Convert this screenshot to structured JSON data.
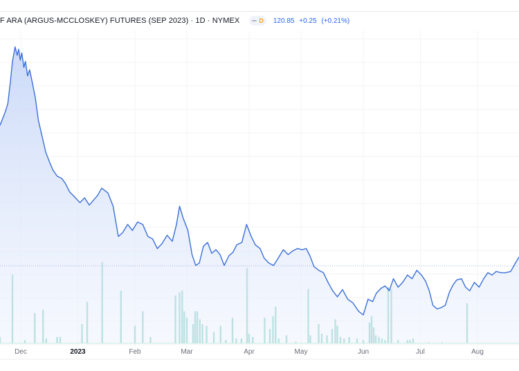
{
  "header": {
    "title": "F ARA (ARGUS-MCCLOSKEY) FUTURES (SEP 2023) · 1D · NYMEX",
    "interval_badge": "D",
    "last_price": "120.85",
    "change": "+0.25",
    "change_pct": "(+0.21%)"
  },
  "colors": {
    "line": "#3a6fd6",
    "area_top": "#c9d8f8",
    "volume": "#7ecbbd",
    "last_price_line": "#9db4ee"
  },
  "chart_data": {
    "type": "area",
    "title": "F ARA (ARGUS-MCCLOSKEY) FUTURES (SEP 2023) · 1D · NYMEX",
    "x_range": [
      0,
      100
    ],
    "ylim": [
      60,
      360
    ],
    "last_price": 120.85,
    "x_tick_labels": [
      {
        "x": 4,
        "label": "Dec"
      },
      {
        "x": 15,
        "label": "2023",
        "bold": true
      },
      {
        "x": 26,
        "label": "Feb"
      },
      {
        "x": 36,
        "label": "Mar"
      },
      {
        "x": 48,
        "label": "Apr"
      },
      {
        "x": 58,
        "label": "May"
      },
      {
        "x": 70,
        "label": "Jun"
      },
      {
        "x": 81,
        "label": "Jul"
      },
      {
        "x": 92,
        "label": "Aug"
      }
    ],
    "price": [
      [
        0,
        292
      ],
      [
        1,
        303
      ],
      [
        1.5,
        310
      ],
      [
        2,
        328
      ],
      [
        2.4,
        345
      ],
      [
        2.9,
        357
      ],
      [
        3.3,
        350
      ],
      [
        3.6,
        355
      ],
      [
        3.9,
        346
      ],
      [
        4.2,
        352
      ],
      [
        4.6,
        340
      ],
      [
        4.9,
        345
      ],
      [
        5.3,
        333
      ],
      [
        5.7,
        338
      ],
      [
        6.2,
        328
      ],
      [
        6.8,
        315
      ],
      [
        7.4,
        296
      ],
      [
        8.1,
        283
      ],
      [
        8.8,
        270
      ],
      [
        9.5,
        262
      ],
      [
        10.2,
        255
      ],
      [
        11,
        250
      ],
      [
        11.9,
        248
      ],
      [
        12.6,
        244
      ],
      [
        13.4,
        237
      ],
      [
        14.3,
        233
      ],
      [
        15.4,
        228
      ],
      [
        16.3,
        232
      ],
      [
        17.2,
        226
      ],
      [
        18,
        230
      ],
      [
        18.8,
        234
      ],
      [
        19.6,
        240
      ],
      [
        20.8,
        236
      ],
      [
        21.8,
        225
      ],
      [
        22.8,
        200
      ],
      [
        23.6,
        203
      ],
      [
        24.6,
        210
      ],
      [
        25.5,
        205
      ],
      [
        26.5,
        212
      ],
      [
        27.5,
        210
      ],
      [
        28.5,
        200
      ],
      [
        29.4,
        198
      ],
      [
        30.3,
        190
      ],
      [
        31.2,
        194
      ],
      [
        32.2,
        201
      ],
      [
        33.2,
        196
      ],
      [
        34,
        210
      ],
      [
        34.6,
        225
      ],
      [
        35.3,
        215
      ],
      [
        36.2,
        205
      ],
      [
        37,
        185
      ],
      [
        37.7,
        176
      ],
      [
        38.4,
        178
      ],
      [
        39.2,
        192
      ],
      [
        40,
        195
      ],
      [
        40.8,
        186
      ],
      [
        41.6,
        189
      ],
      [
        42.4,
        185
      ],
      [
        43.2,
        176
      ],
      [
        44.1,
        184
      ],
      [
        44.9,
        187
      ],
      [
        45.6,
        193
      ],
      [
        46.6,
        195
      ],
      [
        47.5,
        210
      ],
      [
        48.4,
        200
      ],
      [
        49.2,
        193
      ],
      [
        50.1,
        190
      ],
      [
        50.9,
        182
      ],
      [
        51.8,
        178
      ],
      [
        52.7,
        176
      ],
      [
        53.6,
        182
      ],
      [
        54.6,
        189
      ],
      [
        55.5,
        185
      ],
      [
        56.4,
        188
      ],
      [
        57.3,
        190
      ],
      [
        58.2,
        189
      ],
      [
        59,
        190
      ],
      [
        59.7,
        184
      ],
      [
        60.5,
        175
      ],
      [
        61.4,
        172
      ],
      [
        62.3,
        170
      ],
      [
        63.2,
        162
      ],
      [
        64.1,
        155
      ],
      [
        65,
        150
      ],
      [
        66,
        156
      ],
      [
        67,
        148
      ],
      [
        68,
        145
      ],
      [
        69.1,
        138
      ],
      [
        70,
        135
      ],
      [
        70.9,
        148
      ],
      [
        71.8,
        146
      ],
      [
        72.5,
        153
      ],
      [
        73.4,
        157
      ],
      [
        74.2,
        159
      ],
      [
        75,
        155
      ],
      [
        75.8,
        165
      ],
      [
        76.7,
        158
      ],
      [
        77.6,
        162
      ],
      [
        78.5,
        168
      ],
      [
        79.4,
        165
      ],
      [
        80.3,
        172
      ],
      [
        81.2,
        168
      ],
      [
        82,
        163
      ],
      [
        82.7,
        155
      ],
      [
        83.4,
        143
      ],
      [
        84.2,
        140
      ],
      [
        85,
        141
      ],
      [
        85.8,
        143
      ],
      [
        86.6,
        154
      ],
      [
        87.3,
        160
      ],
      [
        88,
        164
      ],
      [
        88.9,
        165
      ],
      [
        89.7,
        158
      ],
      [
        90.5,
        155
      ],
      [
        91.4,
        162
      ],
      [
        92.3,
        158
      ],
      [
        93.2,
        165
      ],
      [
        94,
        170
      ],
      [
        94.8,
        168
      ],
      [
        95.6,
        171
      ],
      [
        96.5,
        170
      ],
      [
        97.4,
        170
      ],
      [
        98.4,
        171
      ],
      [
        99.3,
        178
      ],
      [
        100,
        183
      ]
    ],
    "volume": [
      [
        0,
        4
      ],
      [
        2.4,
        43
      ],
      [
        4.8,
        2
      ],
      [
        6.7,
        19
      ],
      [
        8.3,
        21
      ],
      [
        8.9,
        3
      ],
      [
        11,
        4
      ],
      [
        11.6,
        4
      ],
      [
        15.8,
        12
      ],
      [
        16.8,
        26
      ],
      [
        19.7,
        51
      ],
      [
        23.3,
        33
      ],
      [
        26,
        11
      ],
      [
        27.5,
        20
      ],
      [
        29,
        4
      ],
      [
        33.8,
        30
      ],
      [
        34.6,
        32
      ],
      [
        35.1,
        33
      ],
      [
        35.5,
        20
      ],
      [
        36,
        16
      ],
      [
        37.2,
        12
      ],
      [
        37.6,
        20
      ],
      [
        38,
        20
      ],
      [
        38.5,
        15
      ],
      [
        39,
        12
      ],
      [
        39.8,
        11
      ],
      [
        41.2,
        7
      ],
      [
        42.5,
        11
      ],
      [
        43.5,
        2
      ],
      [
        44.8,
        16
      ],
      [
        45.5,
        3
      ],
      [
        46.5,
        3
      ],
      [
        47.6,
        47
      ],
      [
        48,
        6
      ],
      [
        48.7,
        4
      ],
      [
        51,
        16
      ],
      [
        52,
        9
      ],
      [
        52.6,
        17
      ],
      [
        53.1,
        23
      ],
      [
        53.7,
        3
      ],
      [
        55.2,
        5
      ],
      [
        57,
        1
      ],
      [
        59.4,
        34
      ],
      [
        59.8,
        5
      ],
      [
        61.4,
        12
      ],
      [
        62,
        6
      ],
      [
        63,
        5
      ],
      [
        64,
        9
      ],
      [
        64.6,
        15
      ],
      [
        65,
        11
      ],
      [
        65.6,
        4
      ],
      [
        66.3,
        3
      ],
      [
        67.3,
        4
      ],
      [
        68.8,
        3
      ],
      [
        70,
        2
      ],
      [
        71.2,
        13
      ],
      [
        71.6,
        17
      ],
      [
        72,
        10
      ],
      [
        72.4,
        5
      ],
      [
        73,
        4
      ],
      [
        73.6,
        3
      ],
      [
        74.2,
        2
      ],
      [
        74.8,
        35
      ],
      [
        75.4,
        34
      ],
      [
        76.7,
        2
      ],
      [
        78.5,
        2
      ],
      [
        79,
        2
      ],
      [
        79.6,
        3
      ],
      [
        82.6,
        0.6
      ],
      [
        85.2,
        0.6
      ],
      [
        90,
        25
      ]
    ]
  }
}
